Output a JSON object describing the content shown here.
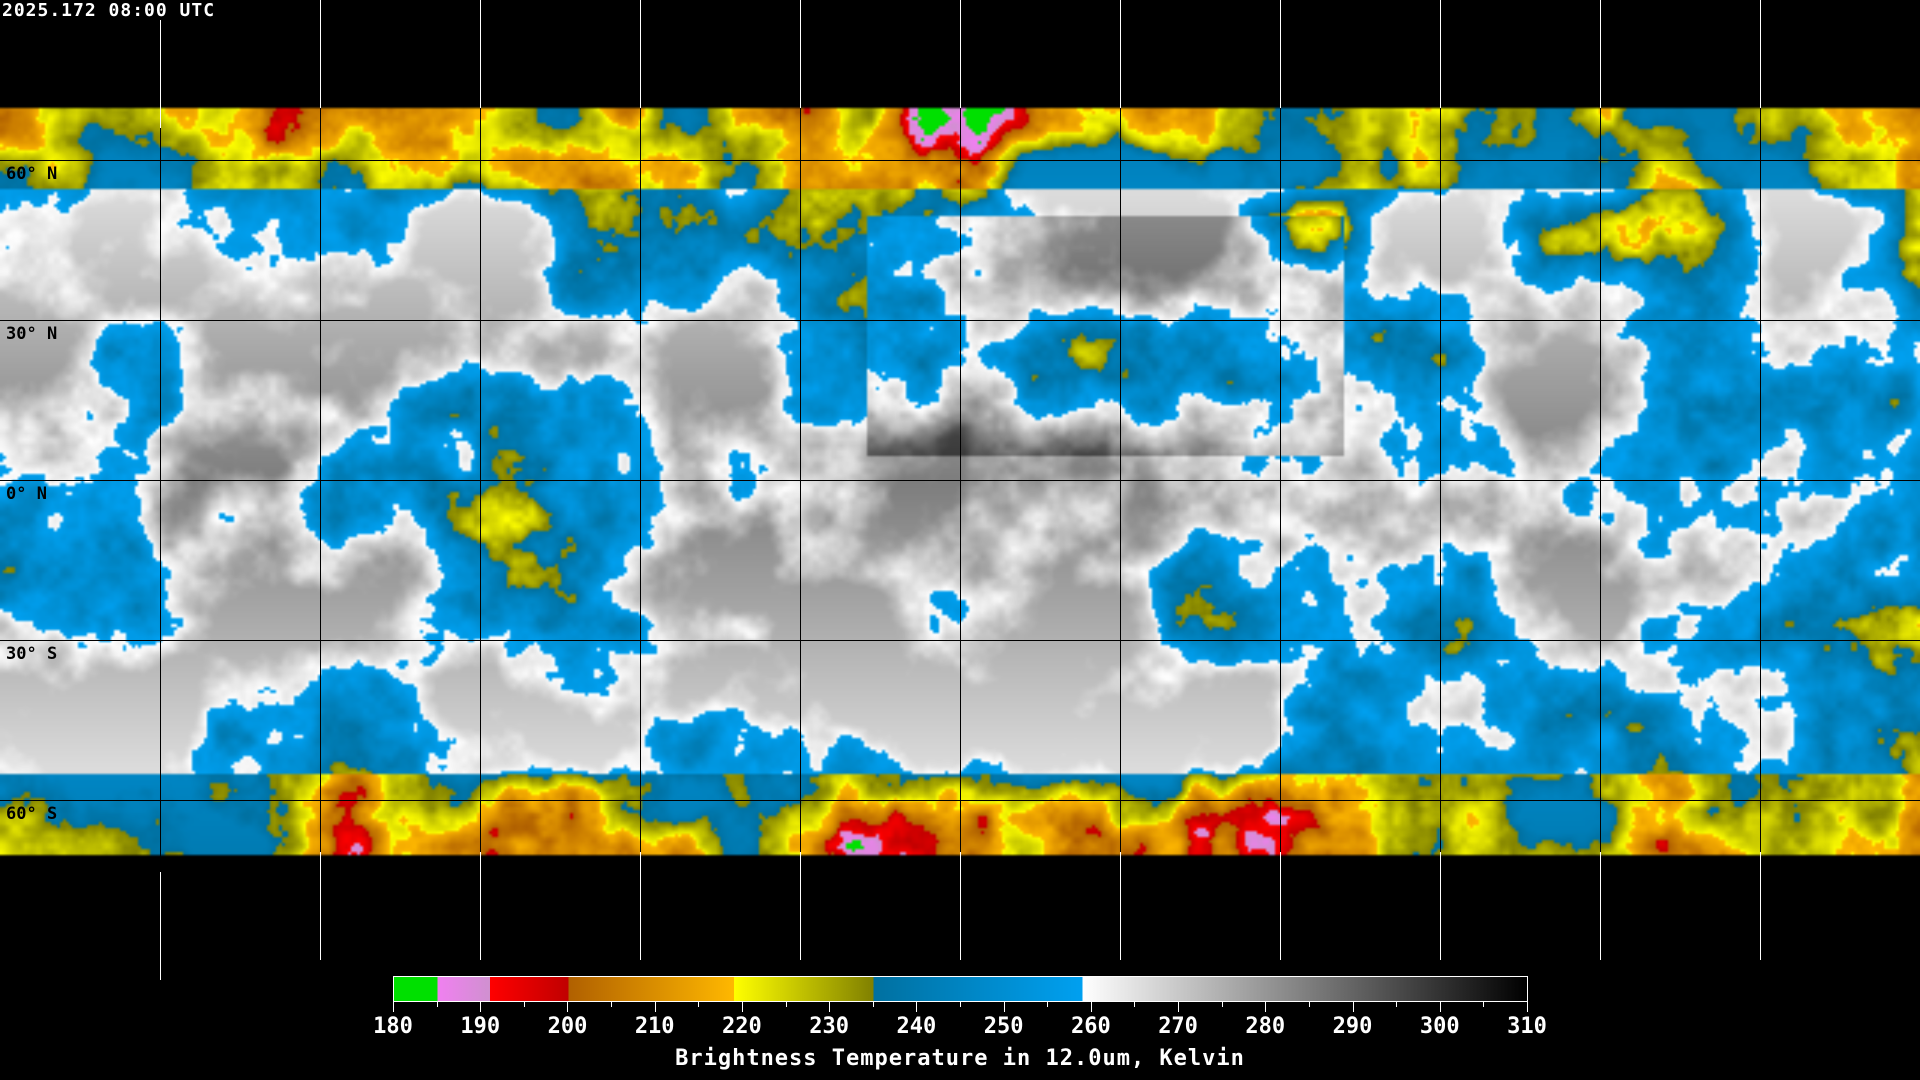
{
  "timestamp": "2025.172 08:00 UTC",
  "map": {
    "projection": "equirectangular",
    "grid_spacing_deg": 30,
    "lat_labels": [
      "60° N",
      "30° N",
      "0° N",
      "30° S",
      "60° S"
    ]
  },
  "colorbar": {
    "min": 180,
    "max": 310,
    "ticks": [
      "180",
      "190",
      "200",
      "210",
      "220",
      "230",
      "240",
      "250",
      "260",
      "270",
      "280",
      "290",
      "300",
      "310"
    ],
    "title": "Brightness Temperature in 12.0um, Kelvin",
    "segments": [
      {
        "from": 180,
        "to": 185,
        "c0": "#00e000",
        "c1": "#00e000"
      },
      {
        "from": 185,
        "to": 191,
        "c0": "#f080f0",
        "c1": "#d090d0"
      },
      {
        "from": 191,
        "to": 200,
        "c0": "#ff0000",
        "c1": "#c00000"
      },
      {
        "from": 200,
        "to": 219,
        "c0": "#b06000",
        "c1": "#ffb800"
      },
      {
        "from": 219,
        "to": 235,
        "c0": "#ffff00",
        "c1": "#808000"
      },
      {
        "from": 235,
        "to": 259,
        "c0": "#0070a0",
        "c1": "#00a0f0"
      },
      {
        "from": 259,
        "to": 310,
        "c0": "#ffffff",
        "c1": "#000000"
      }
    ]
  }
}
